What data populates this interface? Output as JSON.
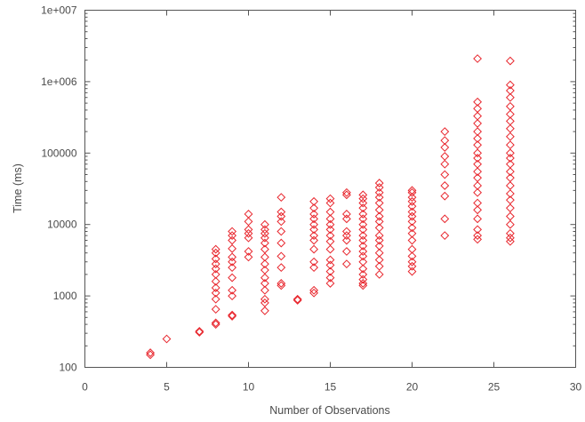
{
  "chart_data": {
    "type": "scatter",
    "title": "",
    "xlabel": "Number of Observations",
    "ylabel": "Time (ms)",
    "xlim": [
      0,
      30
    ],
    "ylim": [
      100,
      10000000
    ],
    "yscale": "log",
    "grid": false,
    "legend": "none",
    "marker": "diamond",
    "color": "#e8262d",
    "x_ticks": [
      0,
      5,
      10,
      15,
      20,
      25,
      30
    ],
    "x_tick_labels": [
      "0",
      "5",
      "10",
      "15",
      "20",
      "25",
      "30"
    ],
    "y_ticks": [
      100,
      1000,
      10000,
      100000,
      1000000,
      10000000
    ],
    "y_tick_labels": [
      "100",
      "1000",
      "10000",
      "100000",
      "1e+006",
      "1e+007"
    ],
    "series": [
      {
        "points": [
          {
            "x": 4,
            "y": 150
          },
          {
            "x": 4,
            "y": 160
          },
          {
            "x": 5,
            "y": 250
          },
          {
            "x": 7,
            "y": 310
          },
          {
            "x": 7,
            "y": 320
          },
          {
            "x": 8,
            "y": 400
          },
          {
            "x": 8,
            "y": 420
          },
          {
            "x": 8,
            "y": 650
          },
          {
            "x": 8,
            "y": 900
          },
          {
            "x": 8,
            "y": 1100
          },
          {
            "x": 8,
            "y": 1300
          },
          {
            "x": 8,
            "y": 1600
          },
          {
            "x": 8,
            "y": 2000
          },
          {
            "x": 8,
            "y": 2400
          },
          {
            "x": 8,
            "y": 2800
          },
          {
            "x": 8,
            "y": 3300
          },
          {
            "x": 8,
            "y": 4000
          },
          {
            "x": 8,
            "y": 4500
          },
          {
            "x": 9,
            "y": 520
          },
          {
            "x": 9,
            "y": 540
          },
          {
            "x": 9,
            "y": 1000
          },
          {
            "x": 9,
            "y": 1200
          },
          {
            "x": 9,
            "y": 1800
          },
          {
            "x": 9,
            "y": 2500
          },
          {
            "x": 9,
            "y": 3000
          },
          {
            "x": 9,
            "y": 3500
          },
          {
            "x": 9,
            "y": 4600
          },
          {
            "x": 9,
            "y": 6000
          },
          {
            "x": 9,
            "y": 7000
          },
          {
            "x": 9,
            "y": 8000
          },
          {
            "x": 10,
            "y": 3500
          },
          {
            "x": 10,
            "y": 4200
          },
          {
            "x": 10,
            "y": 6500
          },
          {
            "x": 10,
            "y": 7500
          },
          {
            "x": 10,
            "y": 8500
          },
          {
            "x": 10,
            "y": 11000
          },
          {
            "x": 10,
            "y": 14000
          },
          {
            "x": 11,
            "y": 620
          },
          {
            "x": 11,
            "y": 800
          },
          {
            "x": 11,
            "y": 900
          },
          {
            "x": 11,
            "y": 1200
          },
          {
            "x": 11,
            "y": 1500
          },
          {
            "x": 11,
            "y": 1800
          },
          {
            "x": 11,
            "y": 2300
          },
          {
            "x": 11,
            "y": 2800
          },
          {
            "x": 11,
            "y": 3500
          },
          {
            "x": 11,
            "y": 4500
          },
          {
            "x": 11,
            "y": 5500
          },
          {
            "x": 11,
            "y": 6500
          },
          {
            "x": 11,
            "y": 7500
          },
          {
            "x": 11,
            "y": 8500
          },
          {
            "x": 11,
            "y": 10000
          },
          {
            "x": 12,
            "y": 1400
          },
          {
            "x": 12,
            "y": 1500
          },
          {
            "x": 12,
            "y": 2500
          },
          {
            "x": 12,
            "y": 3600
          },
          {
            "x": 12,
            "y": 5500
          },
          {
            "x": 12,
            "y": 8000
          },
          {
            "x": 12,
            "y": 11000
          },
          {
            "x": 12,
            "y": 13000
          },
          {
            "x": 12,
            "y": 15000
          },
          {
            "x": 12,
            "y": 24000
          },
          {
            "x": 13,
            "y": 870
          },
          {
            "x": 13,
            "y": 900
          },
          {
            "x": 14,
            "y": 1100
          },
          {
            "x": 14,
            "y": 1200
          },
          {
            "x": 14,
            "y": 2500
          },
          {
            "x": 14,
            "y": 3000
          },
          {
            "x": 14,
            "y": 4500
          },
          {
            "x": 14,
            "y": 6000
          },
          {
            "x": 14,
            "y": 7000
          },
          {
            "x": 14,
            "y": 8500
          },
          {
            "x": 14,
            "y": 10000
          },
          {
            "x": 14,
            "y": 12000
          },
          {
            "x": 14,
            "y": 14000
          },
          {
            "x": 14,
            "y": 17000
          },
          {
            "x": 14,
            "y": 21000
          },
          {
            "x": 15,
            "y": 1500
          },
          {
            "x": 15,
            "y": 1800
          },
          {
            "x": 15,
            "y": 2200
          },
          {
            "x": 15,
            "y": 2700
          },
          {
            "x": 15,
            "y": 3200
          },
          {
            "x": 15,
            "y": 4500
          },
          {
            "x": 15,
            "y": 5800
          },
          {
            "x": 15,
            "y": 7000
          },
          {
            "x": 15,
            "y": 8500
          },
          {
            "x": 15,
            "y": 10000
          },
          {
            "x": 15,
            "y": 12000
          },
          {
            "x": 15,
            "y": 15000
          },
          {
            "x": 15,
            "y": 20000
          },
          {
            "x": 15,
            "y": 23000
          },
          {
            "x": 16,
            "y": 2800
          },
          {
            "x": 16,
            "y": 4200
          },
          {
            "x": 16,
            "y": 6000
          },
          {
            "x": 16,
            "y": 7000
          },
          {
            "x": 16,
            "y": 8000
          },
          {
            "x": 16,
            "y": 12000
          },
          {
            "x": 16,
            "y": 14000
          },
          {
            "x": 16,
            "y": 26000
          },
          {
            "x": 16,
            "y": 28000
          },
          {
            "x": 17,
            "y": 1400
          },
          {
            "x": 17,
            "y": 1500
          },
          {
            "x": 17,
            "y": 1700
          },
          {
            "x": 17,
            "y": 2000
          },
          {
            "x": 17,
            "y": 2400
          },
          {
            "x": 17,
            "y": 3000
          },
          {
            "x": 17,
            "y": 3600
          },
          {
            "x": 17,
            "y": 4200
          },
          {
            "x": 17,
            "y": 5000
          },
          {
            "x": 17,
            "y": 6000
          },
          {
            "x": 17,
            "y": 7000
          },
          {
            "x": 17,
            "y": 8500
          },
          {
            "x": 17,
            "y": 10000
          },
          {
            "x": 17,
            "y": 12000
          },
          {
            "x": 17,
            "y": 14000
          },
          {
            "x": 17,
            "y": 17000
          },
          {
            "x": 17,
            "y": 20000
          },
          {
            "x": 17,
            "y": 23000
          },
          {
            "x": 17,
            "y": 26000
          },
          {
            "x": 18,
            "y": 2000
          },
          {
            "x": 18,
            "y": 2600
          },
          {
            "x": 18,
            "y": 3200
          },
          {
            "x": 18,
            "y": 4000
          },
          {
            "x": 18,
            "y": 5000
          },
          {
            "x": 18,
            "y": 6000
          },
          {
            "x": 18,
            "y": 7000
          },
          {
            "x": 18,
            "y": 9000
          },
          {
            "x": 18,
            "y": 11000
          },
          {
            "x": 18,
            "y": 13000
          },
          {
            "x": 18,
            "y": 16000
          },
          {
            "x": 18,
            "y": 20000
          },
          {
            "x": 18,
            "y": 24000
          },
          {
            "x": 18,
            "y": 28000
          },
          {
            "x": 18,
            "y": 33000
          },
          {
            "x": 18,
            "y": 38000
          },
          {
            "x": 20,
            "y": 2200
          },
          {
            "x": 20,
            "y": 2600
          },
          {
            "x": 20,
            "y": 3000
          },
          {
            "x": 20,
            "y": 3600
          },
          {
            "x": 20,
            "y": 4500
          },
          {
            "x": 20,
            "y": 6000
          },
          {
            "x": 20,
            "y": 7500
          },
          {
            "x": 20,
            "y": 9000
          },
          {
            "x": 20,
            "y": 11000
          },
          {
            "x": 20,
            "y": 13000
          },
          {
            "x": 20,
            "y": 15000
          },
          {
            "x": 20,
            "y": 18000
          },
          {
            "x": 20,
            "y": 21000
          },
          {
            "x": 20,
            "y": 24000
          },
          {
            "x": 20,
            "y": 28000
          },
          {
            "x": 20,
            "y": 30000
          },
          {
            "x": 22,
            "y": 7000
          },
          {
            "x": 22,
            "y": 12000
          },
          {
            "x": 22,
            "y": 25000
          },
          {
            "x": 22,
            "y": 35000
          },
          {
            "x": 22,
            "y": 50000
          },
          {
            "x": 22,
            "y": 70000
          },
          {
            "x": 22,
            "y": 90000
          },
          {
            "x": 22,
            "y": 120000
          },
          {
            "x": 22,
            "y": 150000
          },
          {
            "x": 22,
            "y": 200000
          },
          {
            "x": 24,
            "y": 6200
          },
          {
            "x": 24,
            "y": 7000
          },
          {
            "x": 24,
            "y": 8500
          },
          {
            "x": 24,
            "y": 12000
          },
          {
            "x": 24,
            "y": 16000
          },
          {
            "x": 24,
            "y": 20000
          },
          {
            "x": 24,
            "y": 28000
          },
          {
            "x": 24,
            "y": 35000
          },
          {
            "x": 24,
            "y": 45000
          },
          {
            "x": 24,
            "y": 55000
          },
          {
            "x": 24,
            "y": 70000
          },
          {
            "x": 24,
            "y": 85000
          },
          {
            "x": 24,
            "y": 100000
          },
          {
            "x": 24,
            "y": 130000
          },
          {
            "x": 24,
            "y": 160000
          },
          {
            "x": 24,
            "y": 200000
          },
          {
            "x": 24,
            "y": 260000
          },
          {
            "x": 24,
            "y": 330000
          },
          {
            "x": 24,
            "y": 420000
          },
          {
            "x": 24,
            "y": 520000
          },
          {
            "x": 24,
            "y": 2100000
          },
          {
            "x": 26,
            "y": 5800
          },
          {
            "x": 26,
            "y": 6500
          },
          {
            "x": 26,
            "y": 7500
          },
          {
            "x": 26,
            "y": 10000
          },
          {
            "x": 26,
            "y": 13000
          },
          {
            "x": 26,
            "y": 17000
          },
          {
            "x": 26,
            "y": 22000
          },
          {
            "x": 26,
            "y": 27000
          },
          {
            "x": 26,
            "y": 35000
          },
          {
            "x": 26,
            "y": 45000
          },
          {
            "x": 26,
            "y": 55000
          },
          {
            "x": 26,
            "y": 70000
          },
          {
            "x": 26,
            "y": 85000
          },
          {
            "x": 26,
            "y": 100000
          },
          {
            "x": 26,
            "y": 130000
          },
          {
            "x": 26,
            "y": 170000
          },
          {
            "x": 26,
            "y": 220000
          },
          {
            "x": 26,
            "y": 280000
          },
          {
            "x": 26,
            "y": 350000
          },
          {
            "x": 26,
            "y": 450000
          },
          {
            "x": 26,
            "y": 600000
          },
          {
            "x": 26,
            "y": 750000
          },
          {
            "x": 26,
            "y": 900000
          },
          {
            "x": 26,
            "y": 1950000
          }
        ]
      }
    ]
  }
}
